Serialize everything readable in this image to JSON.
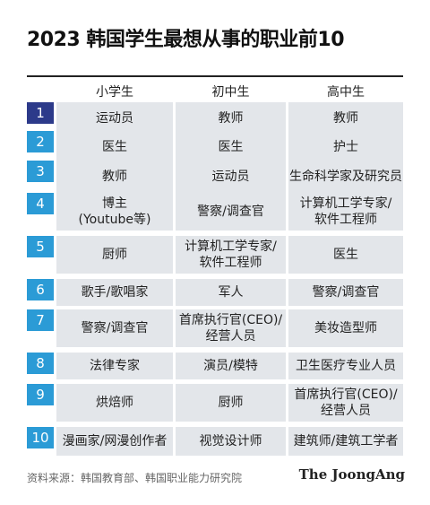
{
  "title": "2023 韩国学生最想从事的职业前10",
  "columns": [
    "小学生",
    "初中生",
    "高中生"
  ],
  "rows": [
    {
      "rank": "1",
      "elementary": "运动员",
      "middle": "教师",
      "high": "教师"
    },
    {
      "rank": "2",
      "elementary": "医生",
      "middle": "医生",
      "high": "护士"
    },
    {
      "rank": "3",
      "elementary": "教师",
      "middle": "运动员",
      "high": "生命科学家及研究员"
    },
    {
      "rank": "4",
      "elementary": "博主\n(Youtube等)",
      "middle": "警察/调查官",
      "high": "计算机工学专家/\n软件工程师"
    },
    {
      "rank": "5",
      "elementary": "厨师",
      "middle": "计算机工学专家/\n软件工程师",
      "high": "医生"
    },
    {
      "rank": "6",
      "elementary": "歌手/歌唱家",
      "middle": "军人",
      "high": "警察/调查官"
    },
    {
      "rank": "7",
      "elementary": "警察/调查官",
      "middle": "首席执行官(CEO)/\n经营人员",
      "high": "美妆造型师"
    },
    {
      "rank": "8",
      "elementary": "法律专家",
      "middle": "演员/模特",
      "high": "卫生医疗专业人员"
    },
    {
      "rank": "9",
      "elementary": "烘焙师",
      "middle": "厨师",
      "high": "首席执行官(CEO)/\n经营人员"
    },
    {
      "rank": "10",
      "elementary": "漫画家/网漫创作者",
      "middle": "视觉设计师",
      "high": "建筑师/建筑工学者"
    }
  ],
  "source": "资料来源：韩国教育部、韩国职业能力研究院",
  "logo": "The JoongAng",
  "colors": {
    "rank_first": "#2c3a8a",
    "rank": "#2b9bd6",
    "cell_bg": "#e3e6ea"
  }
}
